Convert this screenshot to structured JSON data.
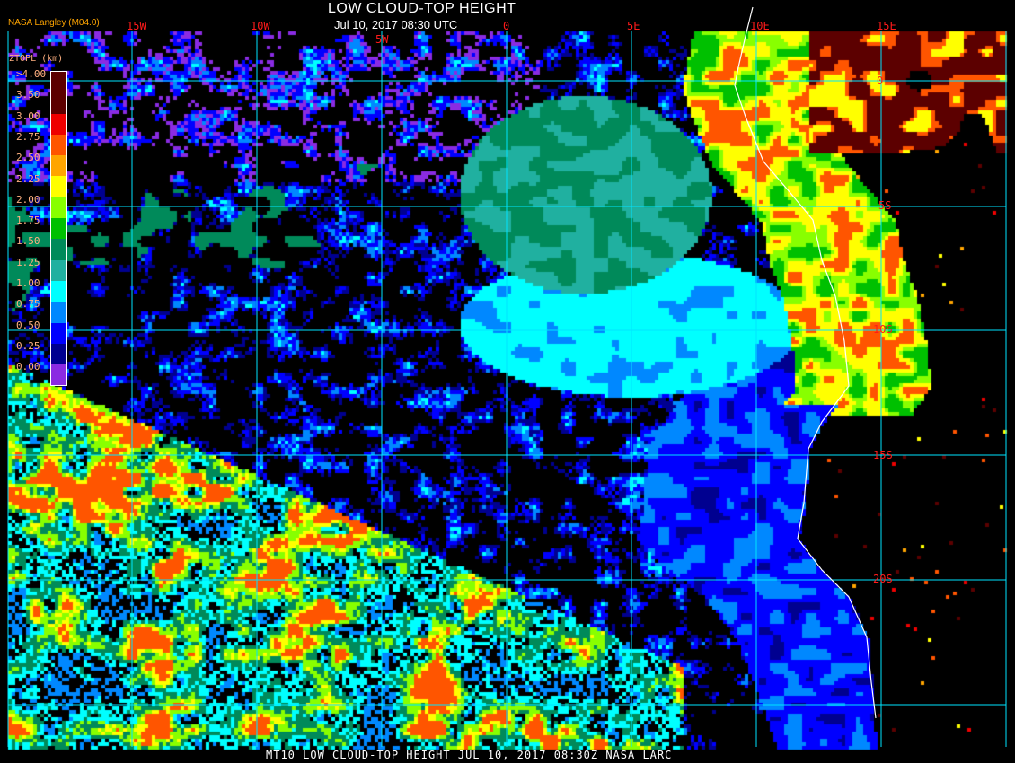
{
  "header": {
    "title": "LOW CLOUD-TOP HEIGHT",
    "subtitle": "Jul 10, 2017 08:30 UTC",
    "credit": "NASA Langley (M04.0)"
  },
  "grid": {
    "longitudes": [
      "15W",
      "10W",
      "5W",
      "0",
      "5E",
      "10E",
      "15E"
    ],
    "latitudes": [
      "0",
      "5S",
      "10S",
      "15S",
      "20S"
    ],
    "line_color": "#00e5ff",
    "label_color": "#ff1a1a"
  },
  "legend": {
    "title": "ZTOPL (km)",
    "labels": [
      ">4.00",
      "3.50",
      "3.00",
      "2.75",
      "2.50",
      "2.25",
      "2.00",
      "1.75",
      "1.50",
      "1.25",
      "1.00",
      "0.75",
      "0.50",
      "0.25",
      "0.00"
    ],
    "colors": [
      "#5c0000",
      "#5c0000",
      "#ee0000",
      "#ff5500",
      "#ffa500",
      "#ffff00",
      "#88ff00",
      "#00c000",
      "#008a5a",
      "#20b0a0",
      "#00ffff",
      "#0088ff",
      "#0000ff",
      "#000090",
      "#8a2be2"
    ]
  },
  "footer": {
    "caption": "MT10  LOW CLOUD-TOP HEIGHT   JUL 10, 2017 08:30Z   NASA LARC"
  }
}
